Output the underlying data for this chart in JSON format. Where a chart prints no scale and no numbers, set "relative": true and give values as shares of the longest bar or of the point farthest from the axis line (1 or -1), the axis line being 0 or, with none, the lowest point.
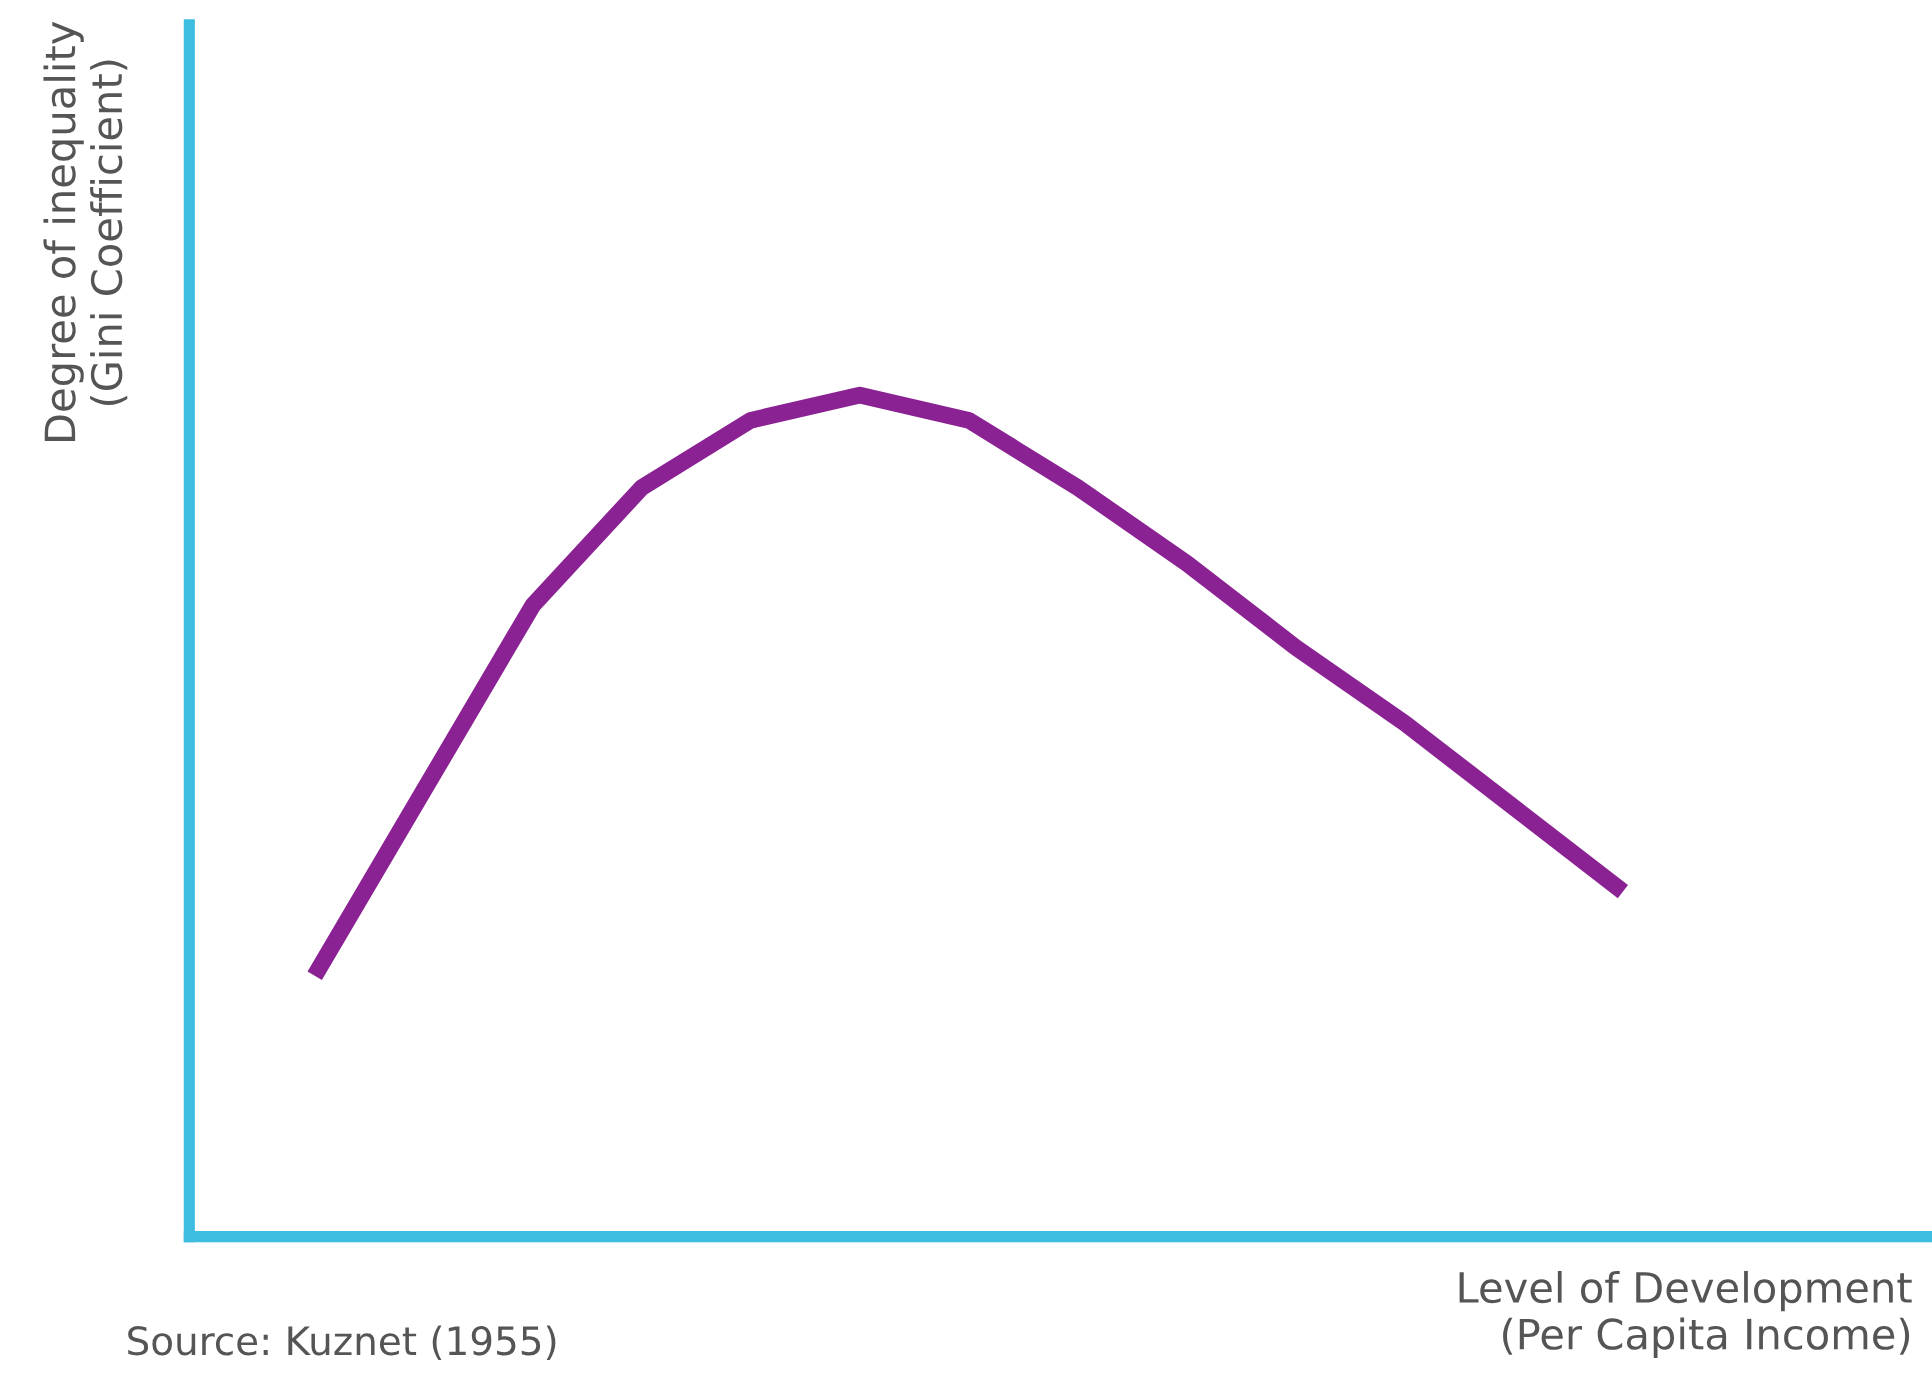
{
  "chart_data": {
    "type": "line",
    "relative": true,
    "xlabel": "Level of Development\n(Per Capita Income)",
    "ylabel": "Degree of inequality\n(Gini Coefficient)",
    "categories": [
      null,
      null,
      null,
      null,
      null,
      null,
      null,
      null,
      null,
      null,
      null,
      null,
      null
    ],
    "series": [
      {
        "color": "#8b2293",
        "values": [
          0.31,
          0.53,
          0.75,
          0.89,
          0.97,
          1.0,
          0.97,
          0.89,
          0.8,
          0.7,
          0.61,
          0.51,
          0.41
        ]
      }
    ],
    "annotations": [
      "Source: Kuznet (1955)"
    ],
    "legend": false
  }
}
